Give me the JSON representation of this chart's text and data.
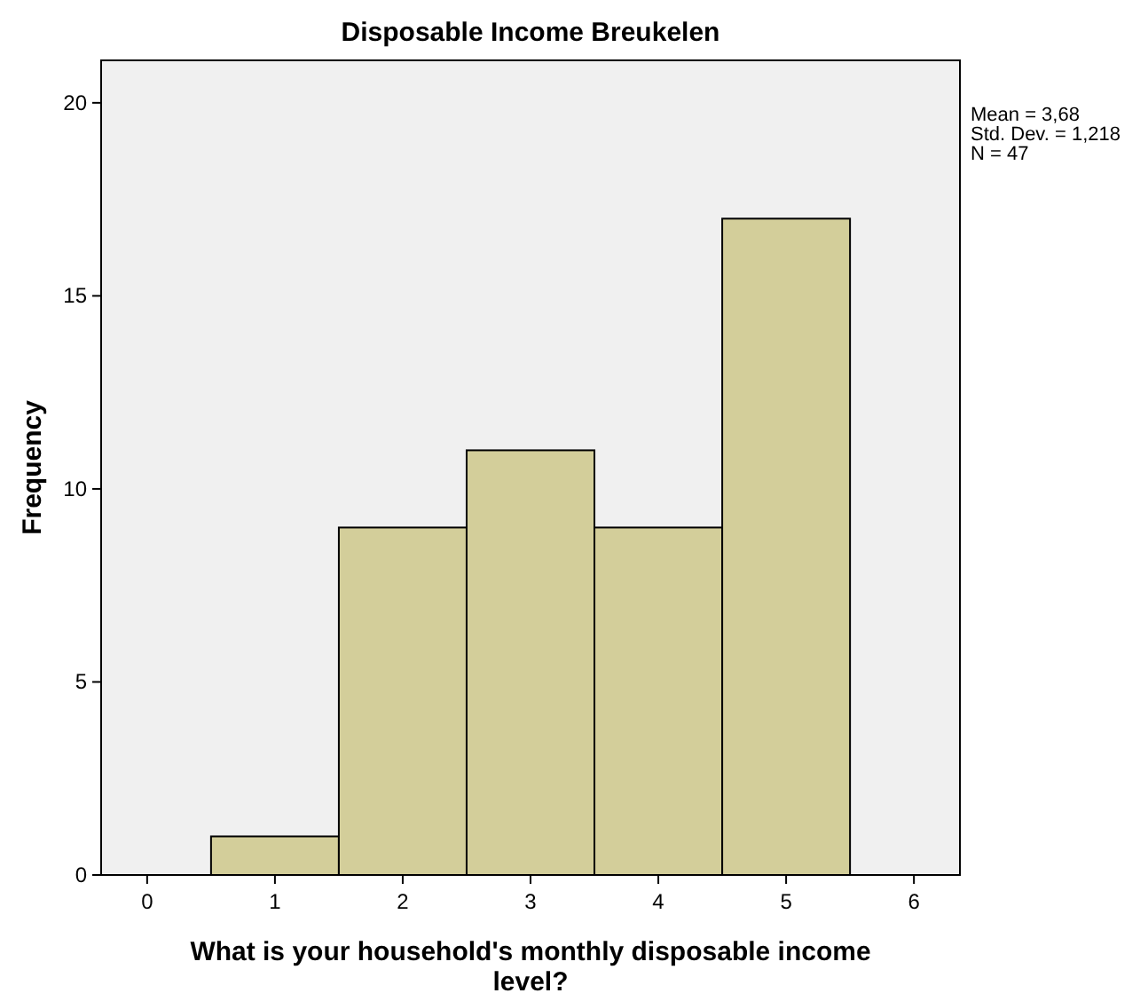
{
  "chart_data": {
    "type": "histogram",
    "title": "Disposable Income Breukelen",
    "xlabel": "What is your household's monthly disposable income level?",
    "ylabel": "Frequency",
    "bins": [
      0.5,
      1.5,
      2.5,
      3.5,
      4.5,
      5.5
    ],
    "values": [
      1,
      9,
      11,
      9,
      17
    ],
    "color": "#d3ce9a",
    "xlim": [
      -0.36,
      6.36
    ],
    "xticks": [
      0,
      1,
      2,
      3,
      4,
      5,
      6
    ],
    "ylim": [
      0,
      21.1
    ],
    "yticks": [
      0,
      5,
      10,
      15,
      20
    ],
    "grid": false,
    "annotations": [
      "Mean = 3,68",
      "Std. Dev. = 1,218",
      "N = 47"
    ]
  }
}
